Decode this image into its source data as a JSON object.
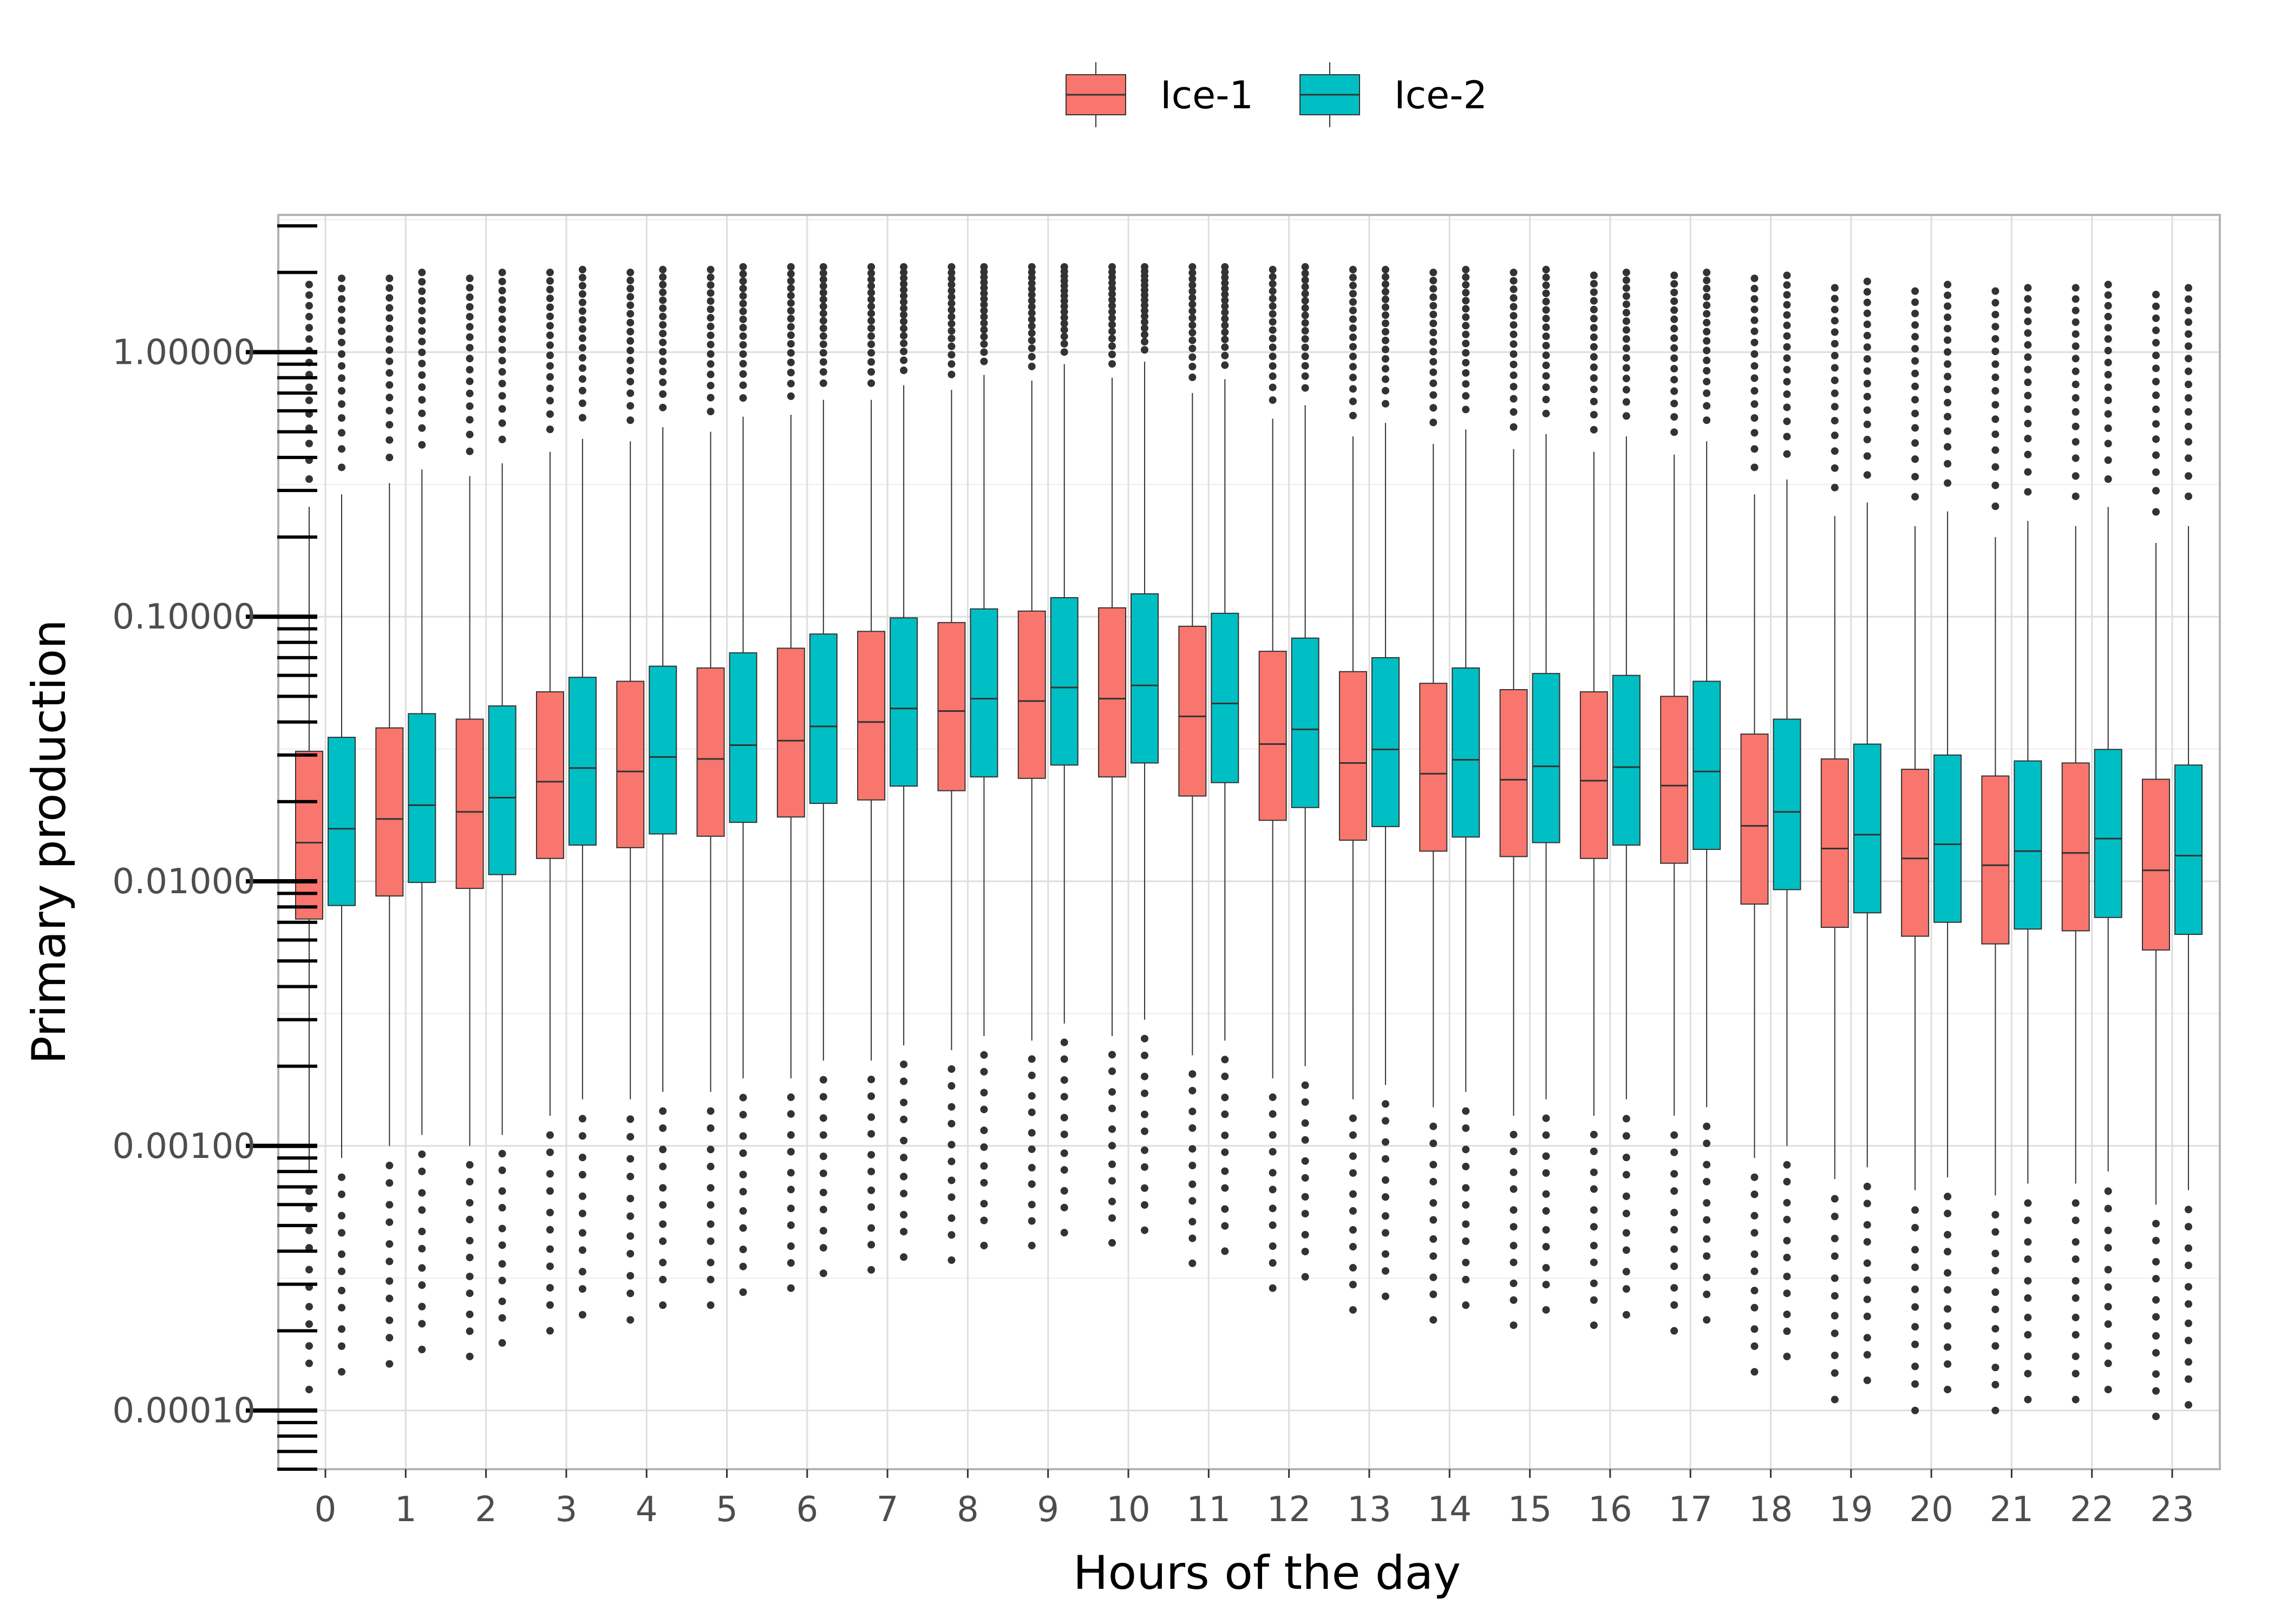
{
  "chart_data": {
    "type": "boxplot",
    "title": "",
    "xlabel": "Hours of the day",
    "ylabel": "Primary production",
    "y_scale": "log10",
    "ylim": [
      6e-05,
      3.3
    ],
    "y_ticks": [
      1,
      0.1,
      0.01,
      0.001,
      0.0001
    ],
    "y_tick_labels": [
      "1.00000",
      "0.10000",
      "0.01000",
      "0.00100",
      "0.00010"
    ],
    "grid": true,
    "legend_position": "top",
    "categories": [
      "0",
      "1",
      "2",
      "3",
      "4",
      "5",
      "6",
      "7",
      "8",
      "9",
      "10",
      "11",
      "12",
      "13",
      "14",
      "15",
      "16",
      "17",
      "18",
      "19",
      "20",
      "21",
      "22",
      "23"
    ],
    "series": [
      {
        "name": "Ice-1",
        "color": "#F8766D",
        "q1": [
          0.0072,
          0.0088,
          0.0094,
          0.0122,
          0.0134,
          0.0148,
          0.0175,
          0.0203,
          0.022,
          0.0245,
          0.0248,
          0.021,
          0.017,
          0.0143,
          0.013,
          0.0124,
          0.0122,
          0.0117,
          0.0082,
          0.0067,
          0.0062,
          0.0058,
          0.0065,
          0.0055
        ],
        "median": [
          0.014,
          0.0172,
          0.0183,
          0.0238,
          0.026,
          0.029,
          0.034,
          0.04,
          0.044,
          0.048,
          0.049,
          0.042,
          0.033,
          0.028,
          0.0255,
          0.0242,
          0.024,
          0.023,
          0.0162,
          0.0133,
          0.0122,
          0.0115,
          0.0128,
          0.011
        ],
        "q3": [
          0.031,
          0.038,
          0.041,
          0.052,
          0.057,
          0.064,
          0.076,
          0.088,
          0.095,
          0.105,
          0.108,
          0.092,
          0.074,
          0.062,
          0.056,
          0.053,
          0.052,
          0.05,
          0.036,
          0.029,
          0.0265,
          0.025,
          0.028,
          0.0243
        ],
        "whisker_low": [
          0.0008,
          0.001,
          0.001,
          0.0013,
          0.0015,
          0.0016,
          0.0018,
          0.0021,
          0.0023,
          0.0025,
          0.0026,
          0.0022,
          0.0018,
          0.0015,
          0.0014,
          0.0013,
          0.0013,
          0.0013,
          0.0009,
          0.00075,
          0.00068,
          0.00065,
          0.00072,
          0.0006
        ],
        "whisker_high": [
          0.26,
          0.32,
          0.34,
          0.42,
          0.46,
          0.5,
          0.58,
          0.66,
          0.72,
          0.78,
          0.8,
          0.7,
          0.56,
          0.48,
          0.45,
          0.43,
          0.42,
          0.41,
          0.29,
          0.24,
          0.22,
          0.2,
          0.22,
          0.19
        ],
        "outlier_max": [
          1.8,
          1.9,
          1.9,
          2.0,
          2.0,
          2.05,
          2.1,
          2.1,
          2.1,
          2.1,
          2.1,
          2.1,
          2.05,
          2.05,
          2.0,
          2.0,
          1.95,
          1.95,
          1.9,
          1.75,
          1.7,
          1.7,
          1.75,
          1.65
        ],
        "outlier_min": [
          0.00012,
          0.00015,
          0.00016,
          0.0002,
          0.00022,
          0.00025,
          0.00029,
          0.00034,
          0.00037,
          0.00042,
          0.00043,
          0.00036,
          0.00029,
          0.00024,
          0.00022,
          0.00021,
          0.00021,
          0.0002,
          0.00014,
          0.00011,
          0.0001,
          0.0001,
          0.00011,
          9.5e-05
        ]
      },
      {
        "name": "Ice-2",
        "color": "#00BFC4",
        "q1": [
          0.0081,
          0.0099,
          0.0106,
          0.0137,
          0.0151,
          0.0167,
          0.0197,
          0.0229,
          0.0248,
          0.0275,
          0.028,
          0.0236,
          0.019,
          0.0161,
          0.0147,
          0.014,
          0.0137,
          0.0132,
          0.0093,
          0.0076,
          0.007,
          0.0066,
          0.0073,
          0.0063
        ],
        "median": [
          0.0158,
          0.0194,
          0.0207,
          0.0268,
          0.0295,
          0.0327,
          0.0385,
          0.045,
          0.049,
          0.054,
          0.055,
          0.047,
          0.0375,
          0.0315,
          0.0288,
          0.0272,
          0.027,
          0.026,
          0.0183,
          0.015,
          0.0138,
          0.013,
          0.0145,
          0.0125
        ],
        "q3": [
          0.035,
          0.043,
          0.046,
          0.059,
          0.065,
          0.073,
          0.086,
          0.099,
          0.107,
          0.118,
          0.122,
          0.103,
          0.083,
          0.07,
          0.064,
          0.061,
          0.06,
          0.057,
          0.041,
          0.033,
          0.03,
          0.0285,
          0.0315,
          0.0275
        ],
        "whisker_low": [
          0.0009,
          0.0011,
          0.0011,
          0.0015,
          0.0016,
          0.0018,
          0.0021,
          0.0024,
          0.0026,
          0.0029,
          0.003,
          0.0025,
          0.002,
          0.0017,
          0.0016,
          0.0015,
          0.0015,
          0.0014,
          0.001,
          0.00083,
          0.00076,
          0.00072,
          0.0008,
          0.00068
        ],
        "whisker_high": [
          0.29,
          0.36,
          0.38,
          0.47,
          0.52,
          0.57,
          0.66,
          0.75,
          0.82,
          0.9,
          0.92,
          0.79,
          0.63,
          0.54,
          0.51,
          0.49,
          0.48,
          0.46,
          0.33,
          0.27,
          0.25,
          0.23,
          0.26,
          0.22
        ],
        "outlier_max": [
          1.9,
          2.0,
          2.0,
          2.05,
          2.05,
          2.1,
          2.1,
          2.1,
          2.1,
          2.1,
          2.1,
          2.1,
          2.1,
          2.05,
          2.05,
          2.05,
          2.0,
          2.0,
          1.95,
          1.85,
          1.8,
          1.75,
          1.8,
          1.75
        ],
        "outlier_min": [
          0.00014,
          0.00017,
          0.00018,
          0.00023,
          0.00025,
          0.00028,
          0.00033,
          0.00038,
          0.00042,
          0.00047,
          0.00048,
          0.0004,
          0.00032,
          0.00027,
          0.00025,
          0.00024,
          0.00023,
          0.00022,
          0.00016,
          0.00013,
          0.00012,
          0.00011,
          0.00012,
          0.000105
        ]
      }
    ]
  }
}
